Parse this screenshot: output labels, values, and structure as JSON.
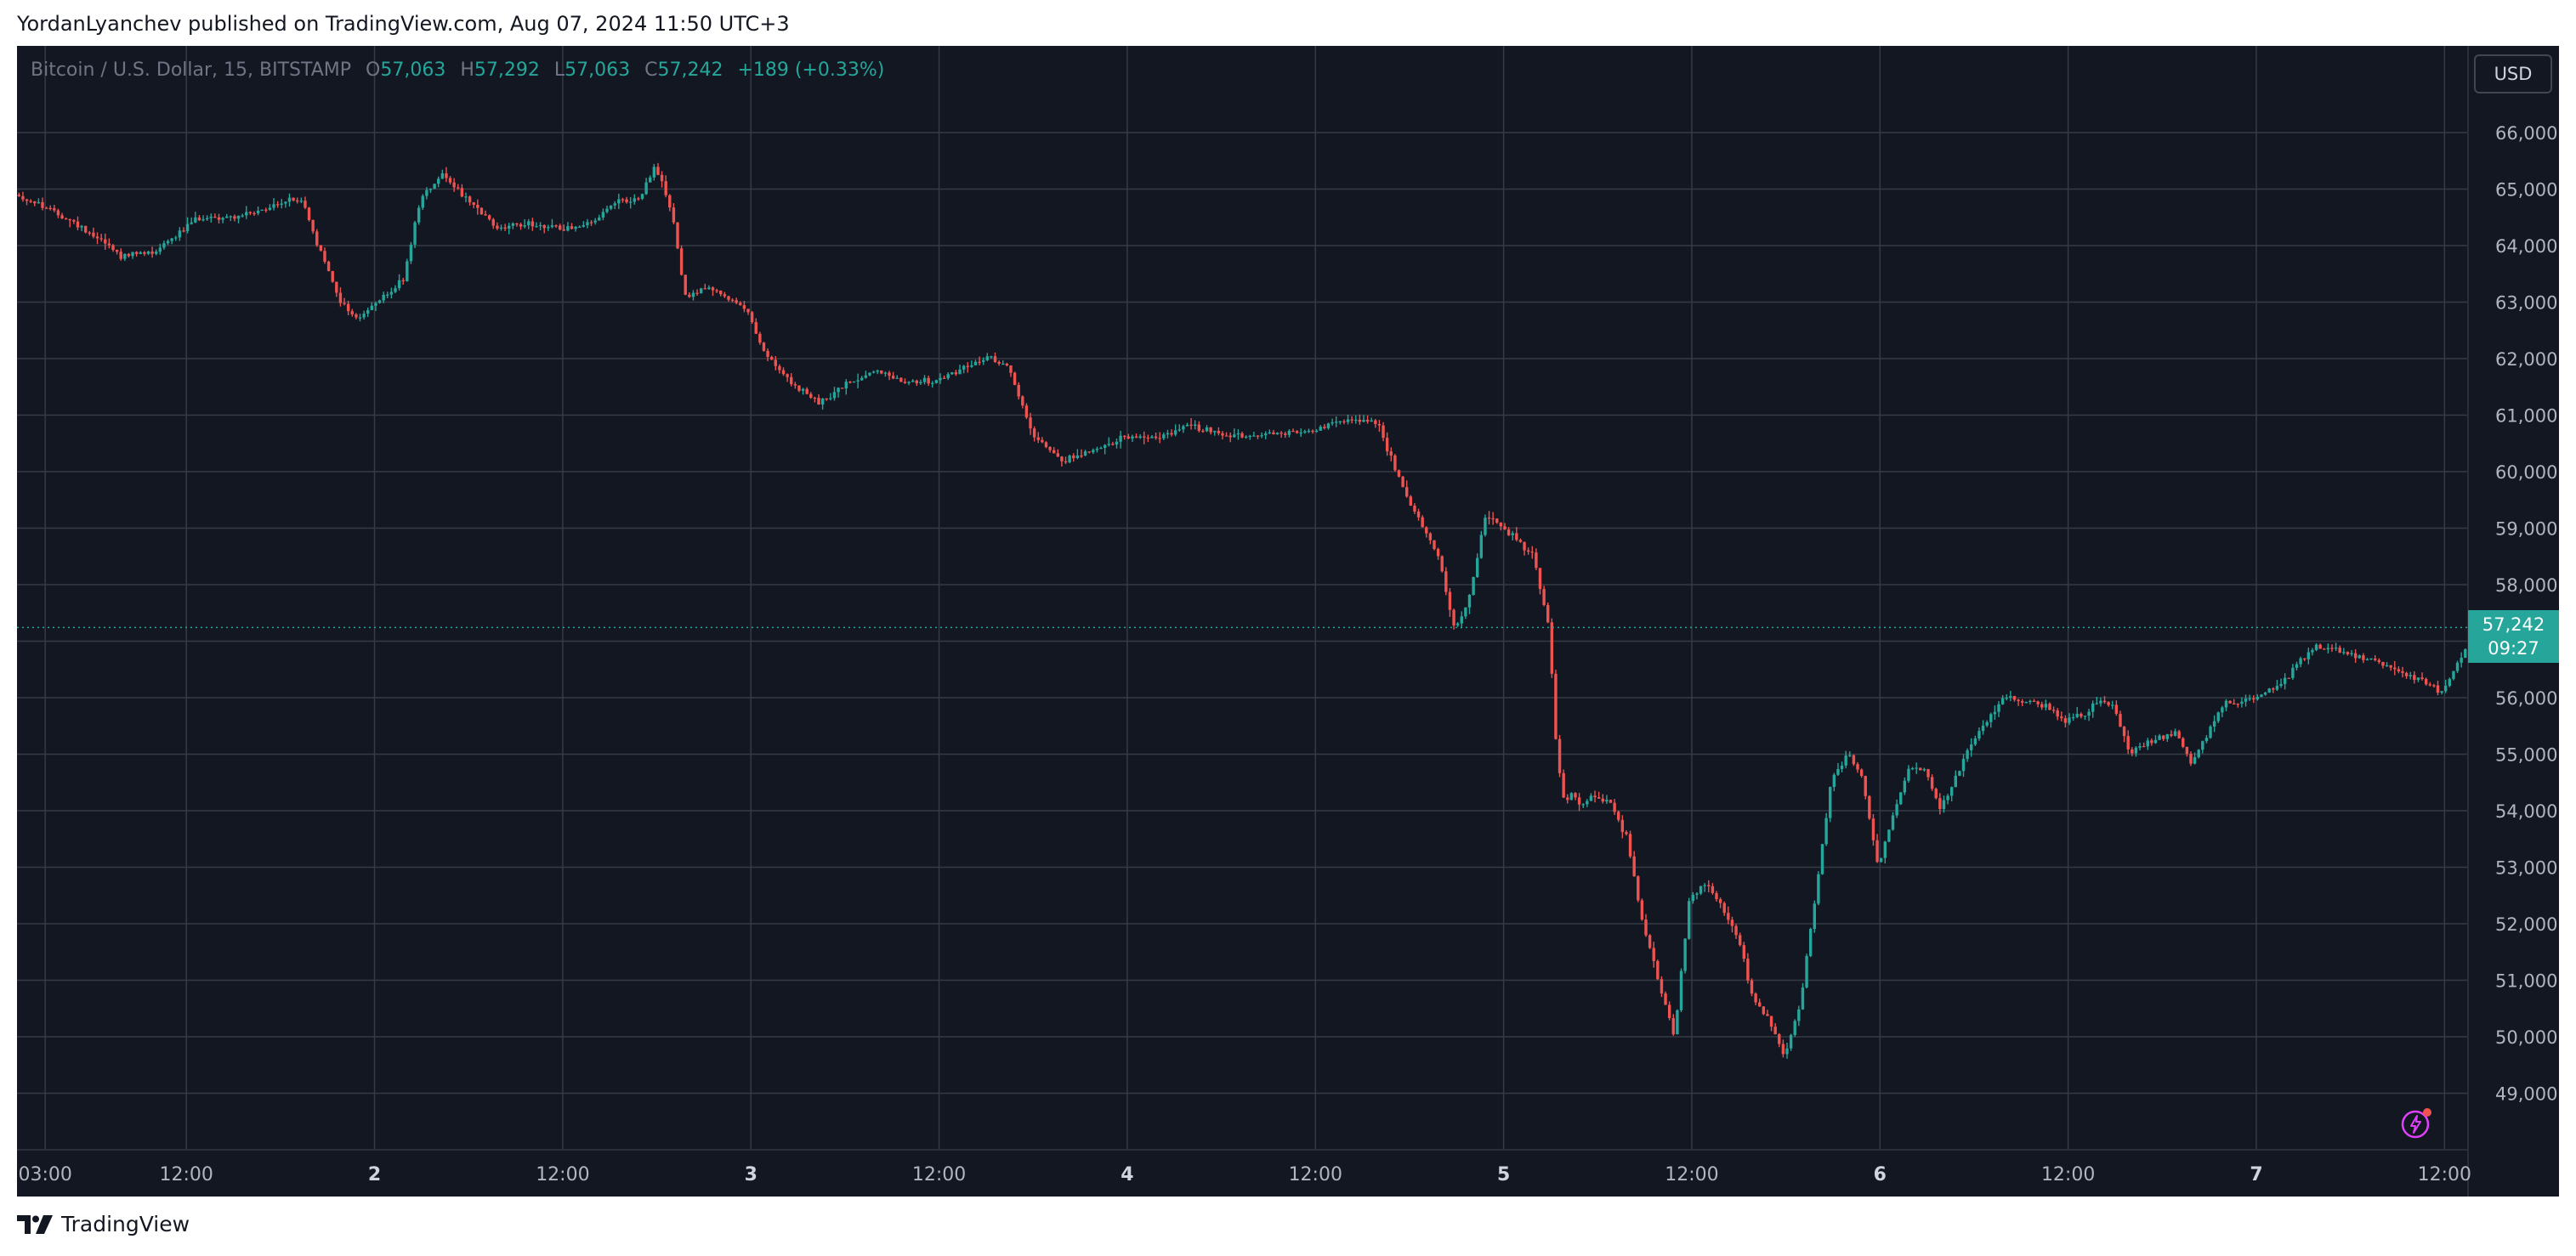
{
  "header": {
    "published": "YordanLyanchev published on TradingView.com, Aug 07, 2024 11:50 UTC+3"
  },
  "legend": {
    "symbol": "Bitcoin / U.S. Dollar, 15, BITSTAMP",
    "o_label": "O",
    "open": "57,063",
    "h_label": "H",
    "high": "57,292",
    "l_label": "L",
    "low": "57,063",
    "c_label": "C",
    "close": "57,242",
    "change": "+189 (+0.33%)"
  },
  "currency_button": "USD",
  "price_tag": {
    "price": "57,242",
    "countdown": "09:27"
  },
  "footer": {
    "brand": "TradingView"
  },
  "colors": {
    "background": "#131722",
    "grid": "#363a45",
    "up": "#26a69a",
    "down": "#ef5350",
    "accent": "#e040fb"
  },
  "icons": [
    "tradingview-logo-icon",
    "lightning-icon"
  ],
  "chart_data": {
    "type": "candlestick",
    "title": "Bitcoin / U.S. Dollar, 15, BITSTAMP",
    "xlabel": "",
    "ylabel": "",
    "interval_minutes": 15,
    "ylim": [
      48000,
      67000
    ],
    "y_ticks": [
      "49,000",
      "50,000",
      "51,000",
      "52,000",
      "53,000",
      "54,000",
      "55,000",
      "56,000",
      "57,000",
      "58,000",
      "59,000",
      "60,000",
      "61,000",
      "62,000",
      "63,000",
      "64,000",
      "65,000",
      "66,000"
    ],
    "y_tick_values": [
      49000,
      50000,
      51000,
      52000,
      53000,
      54000,
      55000,
      56000,
      57000,
      58000,
      59000,
      60000,
      61000,
      62000,
      63000,
      64000,
      65000,
      66000
    ],
    "x_ticks": [
      {
        "label": "03:00",
        "hour": 3
      },
      {
        "label": "12:00",
        "hour": 12
      },
      {
        "label": "2",
        "hour": 24
      },
      {
        "label": "12:00",
        "hour": 36
      },
      {
        "label": "3",
        "hour": 48
      },
      {
        "label": "12:00",
        "hour": 60
      },
      {
        "label": "4",
        "hour": 72
      },
      {
        "label": "12:00",
        "hour": 84
      },
      {
        "label": "5",
        "hour": 96
      },
      {
        "label": "12:00",
        "hour": 108
      },
      {
        "label": "6",
        "hour": 120
      },
      {
        "label": "12:00",
        "hour": 132
      },
      {
        "label": "7",
        "hour": 144
      },
      {
        "label": "12:00",
        "hour": 156
      }
    ],
    "x_range_hours": [
      1.2,
      157.5
    ],
    "last_price": 57242,
    "path_hours": [
      1.2,
      3,
      5,
      6.8,
      8,
      10,
      13,
      15,
      17,
      18.5,
      19.5,
      20.5,
      22,
      23,
      24.3,
      26,
      27,
      28.5,
      30,
      32,
      34,
      36,
      38,
      39.3,
      40,
      41,
      42,
      43,
      44,
      45,
      46,
      48,
      49,
      50.5,
      51.5,
      52.5,
      54,
      56,
      58,
      60,
      62,
      63.5,
      64.5,
      66,
      68,
      70,
      72,
      74,
      76,
      78,
      80,
      82,
      84,
      86,
      88,
      90,
      92,
      93,
      94,
      95,
      96,
      97,
      98,
      99,
      99.5,
      100,
      100.5,
      101,
      102,
      103,
      104,
      105,
      106,
      107,
      108,
      109,
      110,
      111,
      111.5,
      112,
      113,
      114,
      115,
      116,
      117,
      118,
      119,
      120,
      121,
      122,
      123,
      124,
      126,
      128,
      130,
      131,
      132,
      133,
      134,
      135,
      136,
      137,
      138,
      139,
      140,
      142,
      144,
      146,
      147,
      148,
      150,
      152,
      154,
      156,
      157.5
    ],
    "path_values": [
      64900,
      64700,
      64400,
      64100,
      63800,
      63900,
      64500,
      64500,
      64600,
      64800,
      64800,
      64000,
      63000,
      62700,
      63000,
      63400,
      64800,
      65300,
      64800,
      64300,
      64400,
      64300,
      64400,
      64700,
      64800,
      64800,
      65400,
      64700,
      63000,
      63300,
      63200,
      62800,
      62100,
      61600,
      61400,
      61200,
      61500,
      61800,
      61600,
      61600,
      61900,
      62000,
      61900,
      60700,
      60200,
      60400,
      60600,
      60600,
      60800,
      60700,
      60600,
      60700,
      60700,
      60900,
      60900,
      59500,
      58500,
      57200,
      57800,
      59300,
      59000,
      58800,
      58500,
      57300,
      55000,
      54200,
      54300,
      54100,
      54300,
      54100,
      53500,
      52000,
      51000,
      50000,
      52500,
      52700,
      52300,
      51800,
      51300,
      50700,
      50300,
      49700,
      50500,
      52500,
      54500,
      55000,
      54600,
      53000,
      54000,
      54800,
      54700,
      54000,
      55200,
      56000,
      55900,
      55800,
      55600,
      55700,
      55900,
      55900,
      55000,
      55200,
      55300,
      55400,
      54800,
      55900,
      56000,
      56300,
      56700,
      56900,
      56800,
      56600,
      56400,
      56100,
      56900,
      57000,
      56900,
      57242
    ]
  }
}
